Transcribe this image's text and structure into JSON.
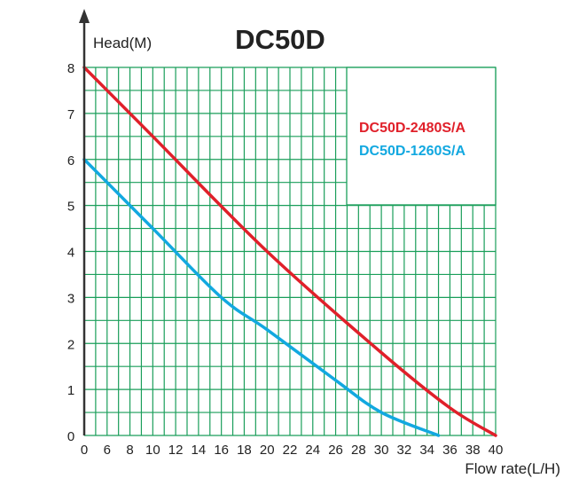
{
  "chart_data": {
    "type": "line",
    "title": "DC50D",
    "xlabel": "Flow rate(L/H)",
    "ylabel": "Head(M)",
    "x_tick_labels": [
      "0",
      "6",
      "8",
      "10",
      "12",
      "14",
      "16",
      "18",
      "20",
      "22",
      "24",
      "26",
      "28",
      "30",
      "32",
      "34",
      "36",
      "38",
      "40"
    ],
    "y_tick_labels": [
      "0",
      "1",
      "2",
      "3",
      "4",
      "5",
      "6",
      "7",
      "8"
    ],
    "xlim": [
      0,
      40
    ],
    "ylim": [
      0,
      8
    ],
    "grid": true,
    "legend_position": "top-right",
    "series": [
      {
        "name": "DC50D-2480S/A",
        "color": "#e0202a",
        "x": [
          0,
          10,
          20,
          30,
          36,
          40
        ],
        "y": [
          8,
          6.5,
          4,
          1.8,
          0.6,
          0
        ]
      },
      {
        "name": "DC50D-1260S/A",
        "color": "#12a8e0",
        "x": [
          0,
          10,
          16,
          20,
          26,
          30,
          35
        ],
        "y": [
          6,
          4.5,
          3,
          2.3,
          1.2,
          0.5,
          0
        ]
      }
    ],
    "grid_color": "#1a9e5a"
  }
}
